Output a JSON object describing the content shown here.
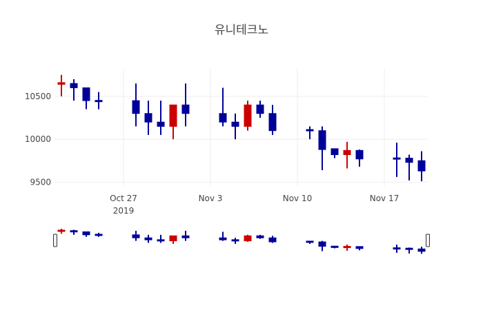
{
  "chart_data": {
    "type": "candlestick",
    "title": "유니테크노",
    "xlabel": "",
    "ylabel": "",
    "ylim": [
      9455,
      10820
    ],
    "yticks": [
      9500,
      10000,
      10500
    ],
    "xticks": [
      {
        "label": "Oct 27",
        "sublabel": "2019",
        "date": "2019-10-27"
      },
      {
        "label": "Nov 3",
        "sublabel": "",
        "date": "2019-11-03"
      },
      {
        "label": "Nov 10",
        "sublabel": "",
        "date": "2019-11-10"
      },
      {
        "label": "Nov 17",
        "sublabel": "",
        "date": "2019-11-17"
      }
    ],
    "grid": true,
    "rangeslider": true,
    "colors": {
      "increasing": "#cc0000",
      "decreasing": "#000099"
    },
    "x": [
      "2019-10-22",
      "2019-10-23",
      "2019-10-24",
      "2019-10-25",
      "2019-10-28",
      "2019-10-29",
      "2019-10-30",
      "2019-10-31",
      "2019-11-01",
      "2019-11-04",
      "2019-11-05",
      "2019-11-06",
      "2019-11-07",
      "2019-11-08",
      "2019-11-11",
      "2019-11-12",
      "2019-11-13",
      "2019-11-14",
      "2019-11-15",
      "2019-11-18",
      "2019-11-19",
      "2019-11-20"
    ],
    "open": [
      10640,
      10650,
      10600,
      10450,
      10450,
      10300,
      10200,
      10150,
      10400,
      10300,
      10200,
      10150,
      10400,
      10300,
      10110,
      10100,
      9890,
      9820,
      9870,
      9780,
      9780,
      9750
    ],
    "high": [
      10750,
      10700,
      10600,
      10550,
      10650,
      10450,
      10450,
      10400,
      10650,
      10600,
      10300,
      10450,
      10450,
      10400,
      10150,
      10150,
      9890,
      9970,
      9880,
      9960,
      9820,
      9860
    ],
    "low": [
      10500,
      10450,
      10350,
      10350,
      10150,
      10050,
      10050,
      10000,
      10150,
      10150,
      10000,
      10100,
      10250,
      10050,
      10000,
      9640,
      9780,
      9660,
      9680,
      9560,
      9520,
      9510
    ],
    "close": [
      10660,
      10600,
      10450,
      10440,
      10300,
      10200,
      10150,
      10400,
      10300,
      10200,
      10150,
      10400,
      10300,
      10100,
      10100,
      9880,
      9820,
      9870,
      9770,
      9770,
      9730,
      9630
    ]
  }
}
